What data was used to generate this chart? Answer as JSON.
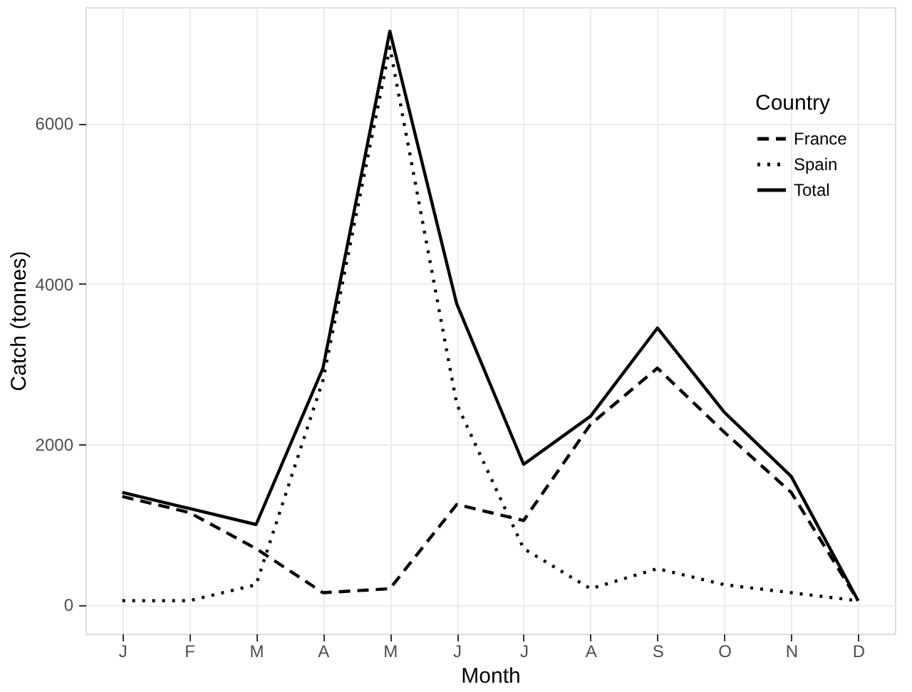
{
  "chart_data": {
    "type": "line",
    "xlabel": "Month",
    "ylabel": "Catch (tonnes)",
    "legend_title": "Country",
    "categories": [
      "J",
      "F",
      "M",
      "A",
      "M",
      "J",
      "J",
      "A",
      "S",
      "O",
      "N",
      "D"
    ],
    "series": [
      {
        "name": "France",
        "color": "#000000",
        "line_style": "dashed",
        "values": [
          1350,
          1150,
          700,
          150,
          200,
          1250,
          1050,
          2250,
          2950,
          2150,
          1400,
          50
        ]
      },
      {
        "name": "Spain",
        "color": "#000000",
        "line_style": "dotted",
        "values": [
          50,
          50,
          250,
          2800,
          6950,
          2500,
          700,
          200,
          450,
          250,
          150,
          50
        ]
      },
      {
        "name": "Total",
        "color": "#000000",
        "line_style": "solid",
        "values": [
          1400,
          1200,
          1000,
          2950,
          7150,
          3750,
          1750,
          2350,
          3450,
          2400,
          1600,
          50
        ]
      }
    ],
    "ylim": [
      -360,
      7450
    ],
    "yticks": [
      0,
      2000,
      4000,
      6000
    ],
    "grid": true,
    "legend": "top right"
  }
}
